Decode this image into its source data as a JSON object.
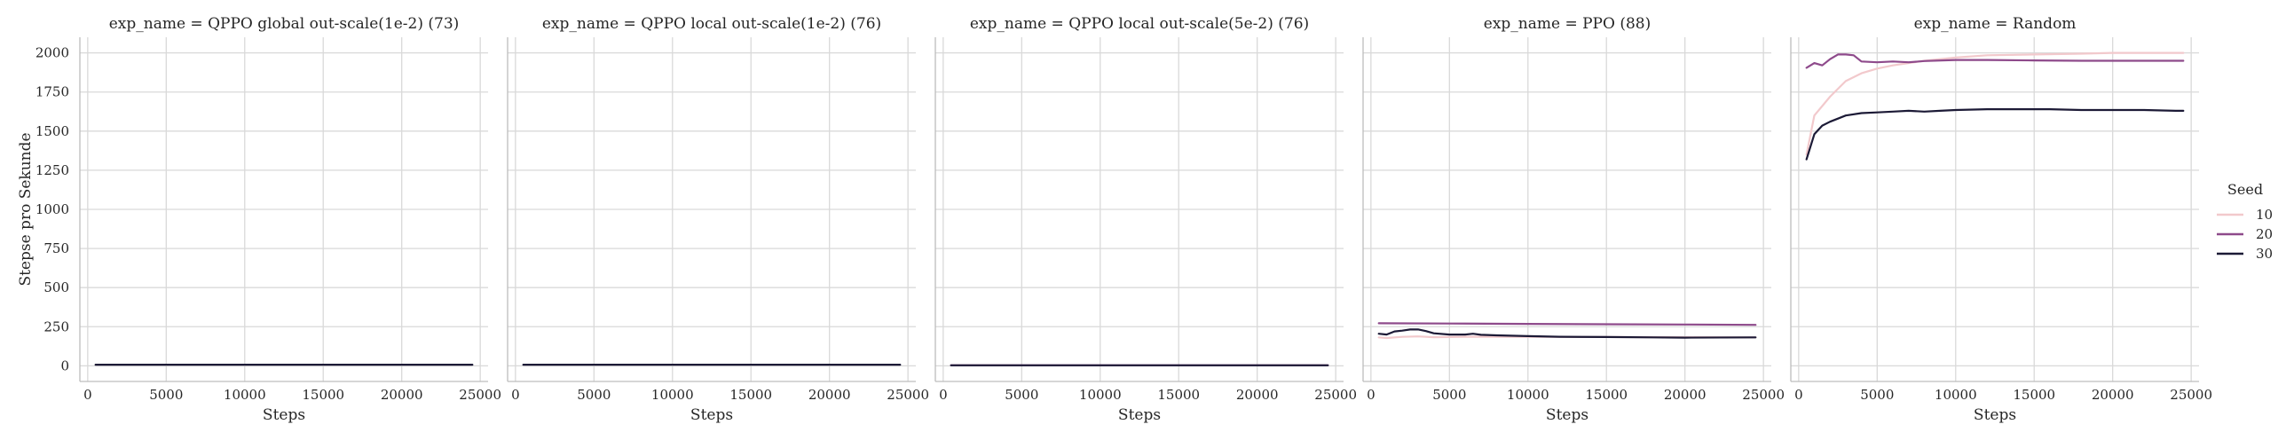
{
  "chart_data": [
    {
      "type": "line",
      "title": "exp_name = QPPO global out-scale(1e-2) (73)",
      "xlabel": "Steps",
      "ylabel": "Stepse pro Sekunde",
      "xlim": [
        -500,
        25500
      ],
      "ylim": [
        -100,
        2100
      ],
      "xticks": [
        0,
        5000,
        10000,
        15000,
        20000,
        25000
      ],
      "yticks": [
        0,
        250,
        500,
        750,
        1000,
        1250,
        1500,
        1750,
        2000
      ],
      "grid": true,
      "series": [
        {
          "name": "30",
          "color": "#1c1a36",
          "x": [
            500,
            24500
          ],
          "y": [
            7,
            7
          ]
        }
      ]
    },
    {
      "type": "line",
      "title": "exp_name = QPPO local out-scale(1e-2) (76)",
      "xlabel": "Steps",
      "xlim": [
        -500,
        25500
      ],
      "ylim": [
        -100,
        2100
      ],
      "xticks": [
        0,
        5000,
        10000,
        15000,
        20000,
        25000
      ],
      "grid": true,
      "series": [
        {
          "name": "30",
          "color": "#1c1a36",
          "x": [
            500,
            24500
          ],
          "y": [
            7,
            7
          ]
        }
      ]
    },
    {
      "type": "line",
      "title": "exp_name = QPPO local out-scale(5e-2) (76)",
      "xlabel": "Steps",
      "xlim": [
        -500,
        25500
      ],
      "ylim": [
        -100,
        2100
      ],
      "xticks": [
        0,
        5000,
        10000,
        15000,
        20000,
        25000
      ],
      "grid": true,
      "series": [
        {
          "name": "20",
          "color": "#8e4a8b",
          "x": [
            500,
            24500
          ],
          "y": [
            4,
            4
          ]
        },
        {
          "name": "30",
          "color": "#1c1a36",
          "x": [
            500,
            24500
          ],
          "y": [
            3,
            3
          ]
        }
      ]
    },
    {
      "type": "line",
      "title": "exp_name = PPO (88)",
      "xlabel": "Steps",
      "xlim": [
        -500,
        25500
      ],
      "ylim": [
        -100,
        2100
      ],
      "xticks": [
        0,
        5000,
        10000,
        15000,
        20000,
        25000
      ],
      "grid": true,
      "series": [
        {
          "name": "10",
          "color": "#f2c9cc",
          "x": [
            500,
            1000,
            2000,
            3000,
            4000,
            6000,
            10000,
            15000,
            20000,
            24500
          ],
          "y": [
            182,
            178,
            185,
            188,
            183,
            186,
            186,
            184,
            183,
            182
          ]
        },
        {
          "name": "20",
          "color": "#8e4a8b",
          "x": [
            500,
            5000,
            10000,
            15000,
            20000,
            24500
          ],
          "y": [
            272,
            270,
            268,
            266,
            264,
            262
          ]
        },
        {
          "name": "30",
          "color": "#1c1a36",
          "x": [
            500,
            1000,
            1500,
            2000,
            2500,
            3000,
            3500,
            4000,
            5000,
            6000,
            6500,
            7000,
            8000,
            10000,
            12000,
            15000,
            18000,
            20000,
            24500
          ],
          "y": [
            205,
            200,
            220,
            225,
            232,
            233,
            222,
            208,
            200,
            200,
            205,
            198,
            195,
            190,
            186,
            184,
            182,
            180,
            182
          ]
        }
      ]
    },
    {
      "type": "line",
      "title": "exp_name = Random",
      "xlabel": "Steps",
      "xlim": [
        -500,
        25500
      ],
      "ylim": [
        -100,
        2100
      ],
      "xticks": [
        0,
        5000,
        10000,
        15000,
        20000,
        25000
      ],
      "grid": true,
      "series": [
        {
          "name": "10",
          "color": "#f2c9cc",
          "x": [
            500,
            1000,
            2000,
            3000,
            4000,
            5000,
            6000,
            8000,
            10000,
            12000,
            15000,
            18000,
            20000,
            22000,
            24500
          ],
          "y": [
            1350,
            1600,
            1720,
            1820,
            1870,
            1900,
            1920,
            1950,
            1970,
            1985,
            1990,
            1995,
            2000,
            2000,
            2000
          ]
        },
        {
          "name": "20",
          "color": "#8e4a8b",
          "x": [
            500,
            1000,
            1500,
            2000,
            2500,
            3000,
            3500,
            4000,
            5000,
            6000,
            7000,
            8000,
            10000,
            12000,
            15000,
            18000,
            20000,
            24500
          ],
          "y": [
            1905,
            1935,
            1920,
            1960,
            1990,
            1990,
            1985,
            1945,
            1940,
            1945,
            1940,
            1948,
            1955,
            1955,
            1952,
            1950,
            1950,
            1950
          ]
        },
        {
          "name": "30",
          "color": "#1c1a36",
          "x": [
            500,
            1000,
            1500,
            2000,
            2500,
            3000,
            4000,
            5000,
            6000,
            7000,
            8000,
            9000,
            10000,
            12000,
            14000,
            16000,
            18000,
            20000,
            22000,
            24000,
            24500
          ],
          "y": [
            1320,
            1480,
            1535,
            1560,
            1580,
            1600,
            1615,
            1620,
            1625,
            1630,
            1625,
            1630,
            1635,
            1640,
            1640,
            1640,
            1635,
            1635,
            1635,
            1630,
            1630
          ]
        }
      ]
    }
  ],
  "legend": {
    "title": "Seed",
    "placement": "right",
    "entries": [
      {
        "label": "10",
        "color": "#f2c9cc"
      },
      {
        "label": "20",
        "color": "#8e4a8b"
      },
      {
        "label": "30",
        "color": "#1c1a36"
      }
    ]
  }
}
